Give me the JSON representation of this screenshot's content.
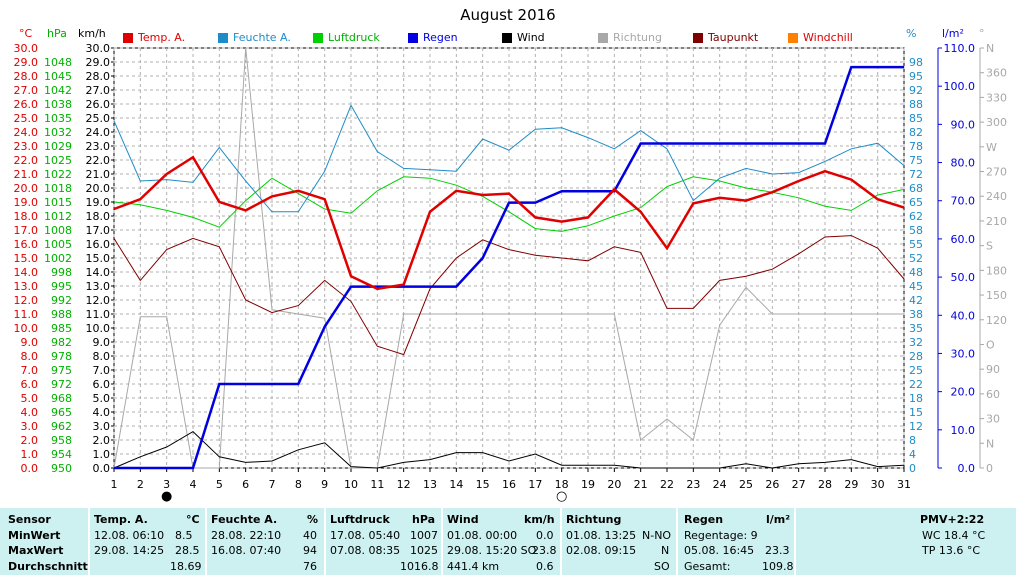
{
  "title": "August 2016",
  "units": {
    "temp": "°C",
    "press": "hPa",
    "wind": "km/h",
    "hum": "%",
    "rain": "l/m²",
    "dir": "°"
  },
  "legend": [
    {
      "label": "Temp. A.",
      "color": "#e00000"
    },
    {
      "label": "Feuchte A.",
      "color": "#1e8cc8"
    },
    {
      "label": "Luftdruck",
      "color": "#00d000"
    },
    {
      "label": "Regen",
      "color": "#0000e0"
    },
    {
      "label": "Wind",
      "color": "#000000"
    },
    {
      "label": "Richtung",
      "color": "#a8a8a8"
    },
    {
      "label": "Taupunkt",
      "color": "#800000"
    },
    {
      "label": "Windchill",
      "color": "#ff8000"
    }
  ],
  "chart_data": {
    "type": "line",
    "title": "August 2016",
    "x": [
      1,
      2,
      3,
      4,
      5,
      6,
      7,
      8,
      9,
      10,
      11,
      12,
      13,
      14,
      15,
      16,
      17,
      18,
      19,
      20,
      21,
      22,
      23,
      24,
      25,
      26,
      27,
      28,
      29,
      30,
      31
    ],
    "xlim": [
      1,
      31
    ],
    "grid": true,
    "legend_position": "top",
    "axes": {
      "temp": {
        "ylim": [
          0,
          30
        ],
        "ticks": [
          "0.0",
          "1.0",
          "2.0",
          "3.0",
          "4.0",
          "5.0",
          "6.0",
          "7.0",
          "8.0",
          "9.0",
          "10.0",
          "11.0",
          "12.0",
          "13.0",
          "14.0",
          "15.0",
          "16.0",
          "17.0",
          "18.0",
          "19.0",
          "20.0",
          "21.0",
          "22.0",
          "23.0",
          "24.0",
          "25.0",
          "26.0",
          "27.0",
          "28.0",
          "29.0",
          "30.0"
        ]
      },
      "pressure": {
        "ticks": [
          "950",
          "954",
          "958",
          "962",
          "965",
          "968",
          "972",
          "975",
          "978",
          "982",
          "985",
          "988",
          "992",
          "995",
          "998",
          "1002",
          "1005",
          "1008",
          "1012",
          "1015",
          "1018",
          "1022",
          "1025",
          "1029",
          "1032",
          "1035",
          "1038",
          "1042",
          "1045",
          "1048"
        ]
      },
      "wind": {
        "ylim": [
          0,
          30
        ],
        "ticks": [
          "0.0",
          "1.0",
          "2.0",
          "3.0",
          "4.0",
          "5.0",
          "6.0",
          "7.0",
          "8.0",
          "9.0",
          "10.0",
          "11.0",
          "12.0",
          "13.0",
          "14.0",
          "15.0",
          "16.0",
          "17.0",
          "18.0",
          "19.0",
          "20.0",
          "21.0",
          "22.0",
          "23.0",
          "24.0",
          "25.0",
          "26.0",
          "27.0",
          "28.0",
          "29.0",
          "30.0"
        ]
      },
      "humidity": {
        "ticks": [
          "0",
          "4",
          "8",
          "12",
          "15",
          "18",
          "22",
          "25",
          "28",
          "32",
          "35",
          "38",
          "42",
          "45",
          "48",
          "52",
          "55",
          "58",
          "62",
          "65",
          "68",
          "72",
          "75",
          "78",
          "82",
          "85",
          "88",
          "92",
          "95",
          "98"
        ]
      },
      "rain": {
        "ylim": [
          0,
          110
        ],
        "ticks": [
          "0.0",
          "10.0",
          "20.0",
          "30.0",
          "40.0",
          "50.0",
          "60.0",
          "70.0",
          "80.0",
          "90.0",
          "100.0",
          "110.0"
        ]
      },
      "direction": {
        "ticks": [
          "0",
          "N",
          "30",
          "60",
          "90",
          "O",
          "120",
          "150",
          "180",
          "S",
          "210",
          "240",
          "270",
          "W",
          "300",
          "330",
          "360",
          "N"
        ]
      }
    },
    "series": [
      {
        "name": "Temp. A.",
        "axis": "temp",
        "color": "#e00000",
        "values": [
          18.5,
          19.2,
          21.0,
          22.2,
          19.0,
          18.4,
          19.4,
          19.8,
          19.2,
          13.7,
          12.8,
          13.1,
          18.3,
          19.8,
          19.5,
          19.6,
          17.9,
          17.6,
          17.9,
          19.9,
          18.3,
          15.7,
          18.9,
          19.3,
          19.1,
          19.7,
          20.5,
          21.2,
          20.6,
          19.2,
          18.6
        ]
      },
      {
        "name": "Feuchte A.",
        "axis": "temp",
        "color": "#1e8cc8",
        "values": [
          24.8,
          20.5,
          20.6,
          20.4,
          22.9,
          20.5,
          18.3,
          18.3,
          21.2,
          25.9,
          22.6,
          21.4,
          21.3,
          21.2,
          23.5,
          22.7,
          24.2,
          24.3,
          23.6,
          22.8,
          24.1,
          22.8,
          19.1,
          20.7,
          21.4,
          21.0,
          21.1,
          21.9,
          22.8,
          23.2,
          21.6
        ]
      },
      {
        "name": "Luftdruck",
        "axis": "temp",
        "color": "#00d000",
        "values": [
          19.0,
          18.8,
          18.4,
          17.9,
          17.2,
          19.1,
          20.7,
          19.6,
          18.5,
          18.2,
          19.8,
          20.8,
          20.7,
          20.2,
          19.4,
          18.3,
          17.1,
          16.9,
          17.3,
          18.0,
          18.6,
          20.1,
          20.8,
          20.5,
          20.0,
          19.7,
          19.3,
          18.7,
          18.4,
          19.5,
          19.9
        ]
      },
      {
        "name": "Regen",
        "axis": "rain",
        "color": "#0000e0",
        "values": [
          0,
          0,
          0,
          0,
          22.0,
          22.0,
          22.0,
          22.0,
          37.0,
          47.5,
          47.5,
          47.5,
          47.5,
          47.5,
          55.0,
          69.5,
          69.5,
          72.5,
          72.5,
          72.5,
          85.0,
          85.0,
          85.0,
          85.0,
          85.0,
          85.0,
          85.0,
          85.0,
          105.0,
          105.0,
          105.0
        ]
      },
      {
        "name": "Wind",
        "axis": "wind",
        "color": "#000000",
        "values": [
          0.0,
          0.8,
          1.5,
          2.6,
          0.8,
          0.4,
          0.5,
          1.3,
          1.8,
          0.1,
          0.0,
          0.4,
          0.6,
          1.1,
          1.1,
          0.5,
          1.0,
          0.2,
          0.2,
          0.2,
          0.0,
          0.0,
          0.0,
          0.0,
          0.3,
          0.0,
          0.3,
          0.4,
          0.6,
          0.1,
          0.2
        ]
      },
      {
        "name": "Richtung",
        "axis": "temp",
        "color": "#a8a8a8",
        "values": [
          0.0,
          10.8,
          10.8,
          0.0,
          0.0,
          30.0,
          11.3,
          11.0,
          10.7,
          0.0,
          0.0,
          11.0,
          11.0,
          11.0,
          11.0,
          11.0,
          11.0,
          11.0,
          11.0,
          11.0,
          2.0,
          3.5,
          2.0,
          10.2,
          12.9,
          11.0,
          11.0,
          11.0,
          11.0,
          11.0,
          11.0
        ]
      },
      {
        "name": "Taupunkt",
        "axis": "temp",
        "color": "#800000",
        "values": [
          16.4,
          13.4,
          15.6,
          16.4,
          15.8,
          12.0,
          11.1,
          11.6,
          13.4,
          11.9,
          8.7,
          8.1,
          12.8,
          15.0,
          16.3,
          15.6,
          15.2,
          15.0,
          14.8,
          15.8,
          15.4,
          11.4,
          11.4,
          13.4,
          13.7,
          14.2,
          15.3,
          16.5,
          16.6,
          15.7,
          13.5
        ]
      }
    ],
    "markers": [
      {
        "day": 3,
        "symbol": "●",
        "label": "new moon"
      },
      {
        "day": 18,
        "symbol": "○",
        "label": "full moon"
      }
    ]
  },
  "table": {
    "sensor": {
      "h": "Sensor",
      "r1": "MinWert",
      "r2": "MaxWert",
      "r3": "Durchschnitt"
    },
    "temp": {
      "h": "Temp. A.",
      "u": "°C",
      "min_t": "12.08.  06:10",
      "min_v": "8.5",
      "max_t": "29.08.  14:25",
      "max_v": "28.5",
      "avg": "18.69"
    },
    "hum": {
      "h": "Feuchte A.",
      "u": "%",
      "min_t": "28.08.  22:10",
      "min_v": "40",
      "max_t": "16.08.  07:40",
      "max_v": "94",
      "avg": "76"
    },
    "press": {
      "h": "Luftdruck",
      "u": "hPa",
      "min_t": "17.08.  05:40",
      "min_v": "1007",
      "max_t": "07.08.  08:35",
      "max_v": "1025",
      "avg": "1016.8"
    },
    "wind": {
      "h": "Wind",
      "u": "km/h",
      "min_t": "01.08.  00:00",
      "min_v": "0.0",
      "max_t": "29.08.  15:20 SO",
      "max_v": "23.8",
      "avg_l": "441.4 km",
      "avg": "0.6"
    },
    "dir": {
      "h": "Richtung",
      "min_t": "01.08.  13:25",
      "min_v": "N-NO",
      "max_t": "02.08.  09:15",
      "max_v": "N",
      "avg": "SO"
    },
    "rain": {
      "h": "Regen",
      "u": "l/m²",
      "r1": "Regentage: 9",
      "max_t": "05.08.  16:45",
      "max_v": "23.3",
      "tot_l": "Gesamt:",
      "tot_v": "109.8"
    },
    "pmv": {
      "h": "PMV+2:22",
      "wc": "WC 18.4 °C",
      "tp": "TP 13.6 °C"
    }
  }
}
